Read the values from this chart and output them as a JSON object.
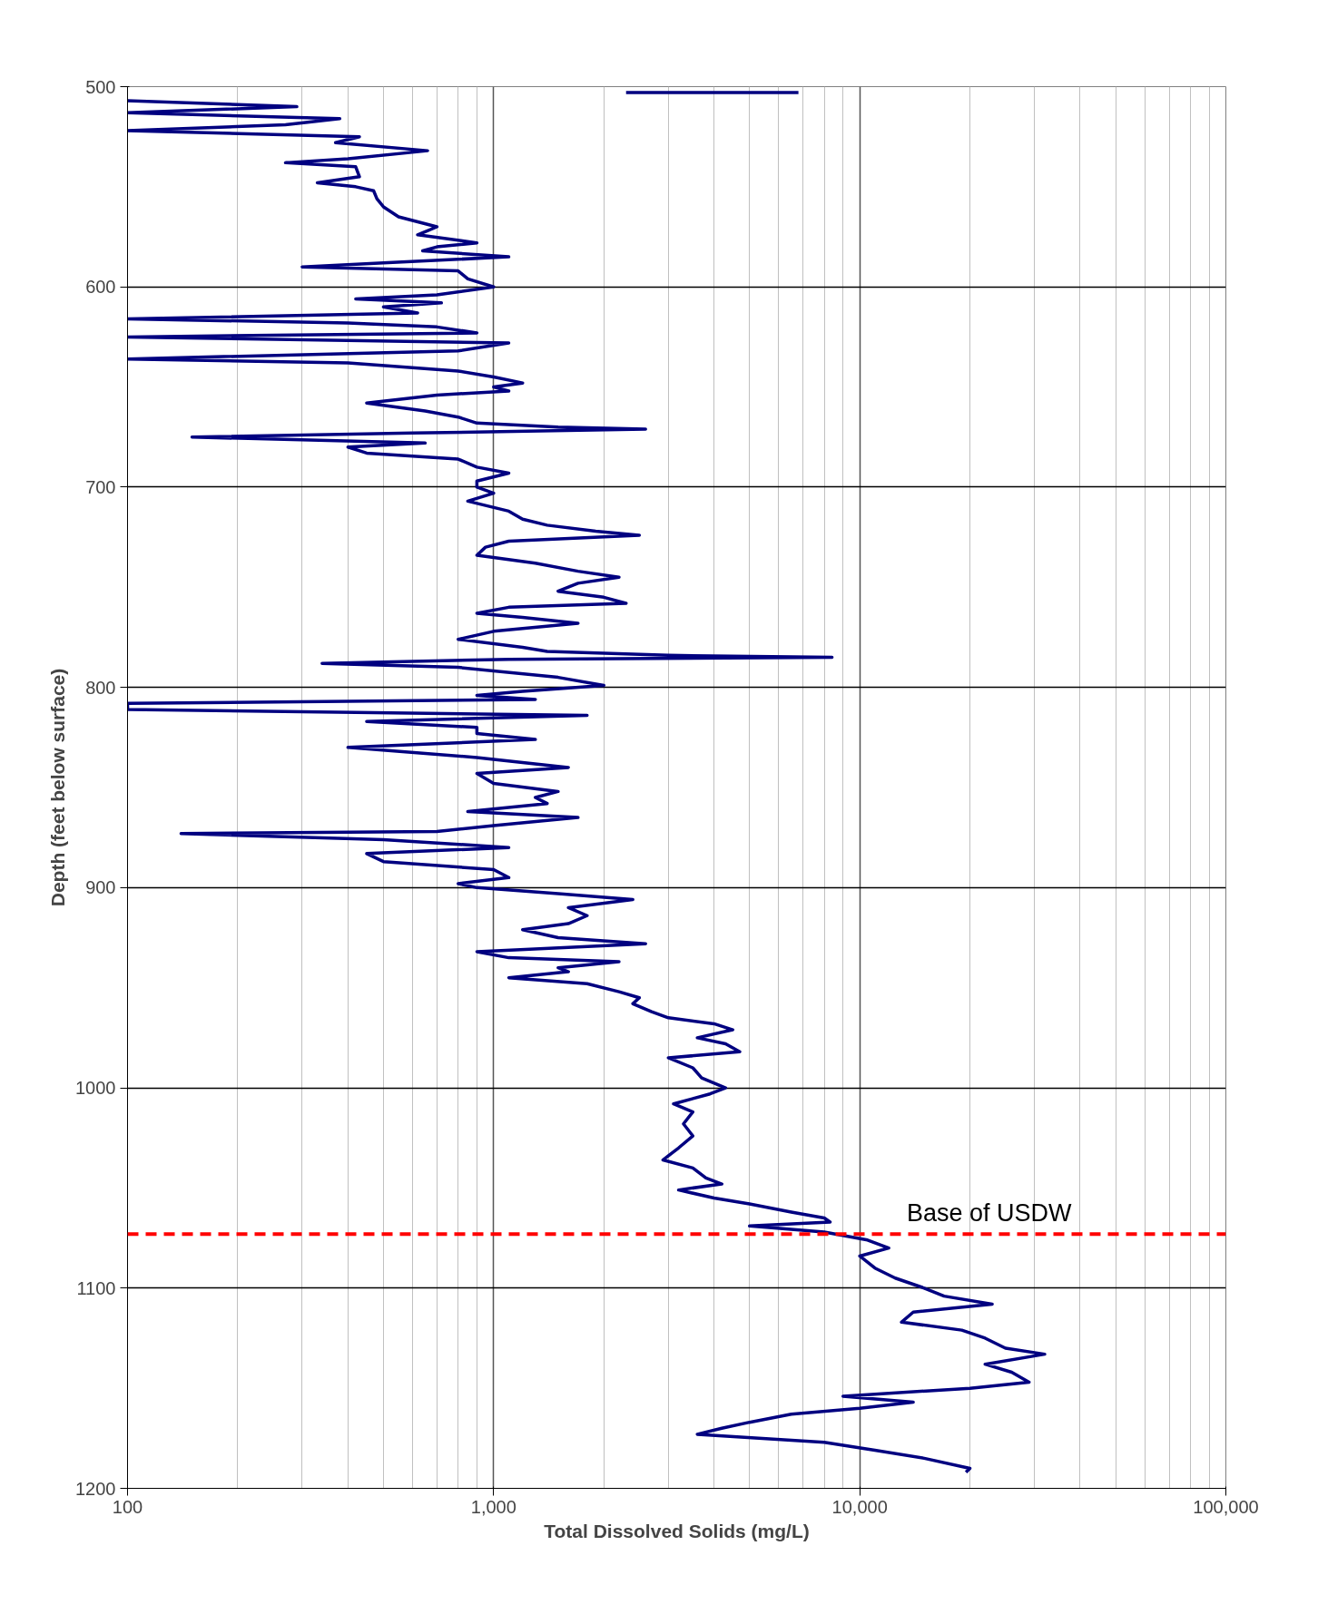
{
  "chart_data": {
    "type": "line",
    "xlabel": "Total Dissolved Solids (mg/L)",
    "ylabel": "Depth (feet below surface)",
    "log": "x",
    "grid": true,
    "marker": "none",
    "line_style": "solid",
    "xlim": [
      100,
      100000
    ],
    "ylim": [
      1200,
      500
    ],
    "xticks": [
      100,
      {
        "value": 1000,
        "label": "1,000"
      },
      {
        "value": 10000,
        "label": "10,000"
      },
      {
        "value": 100000,
        "label": "100,000"
      }
    ],
    "yticks": [
      500,
      600,
      700,
      800,
      900,
      1000,
      1100,
      1200
    ],
    "series": [
      {
        "color": "#000080",
        "x": [
          6800,
          2300,
          null,
          100,
          290,
          100,
          380,
          270,
          100,
          430,
          370,
          660,
          400,
          270,
          420,
          430,
          330,
          420,
          470,
          480,
          500,
          550,
          700,
          620,
          900,
          700,
          640,
          1100,
          500,
          300,
          800,
          850,
          1000,
          700,
          420,
          720,
          500,
          620,
          100,
          400,
          700,
          900,
          100,
          1100,
          800,
          100,
          400,
          800,
          1000,
          1200,
          1000,
          1100,
          700,
          450,
          650,
          800,
          900,
          1500,
          2600,
          600,
          150,
          650,
          400,
          450,
          800,
          900,
          1100,
          900,
          900,
          1000,
          850,
          1100,
          1200,
          1400,
          1900,
          2500,
          1100,
          950,
          900,
          1300,
          1700,
          2200,
          1700,
          1500,
          2000,
          2300,
          1100,
          900,
          1200,
          1700,
          1000,
          800,
          1200,
          1400,
          3000,
          8400,
          1100,
          340,
          800,
          1500,
          2000,
          1200,
          900,
          1300,
          100,
          100,
          1800,
          450,
          900,
          900,
          1300,
          400,
          900,
          1600,
          900,
          1000,
          1500,
          1300,
          1400,
          850,
          1700,
          1000,
          700,
          140,
          500,
          1100,
          450,
          500,
          1000,
          1100,
          800,
          900,
          1500,
          2400,
          1600,
          1800,
          1600,
          1200,
          1500,
          2600,
          900,
          1100,
          2200,
          1500,
          1600,
          1100,
          1800,
          2200,
          2500,
          2400,
          2700,
          3000,
          4000,
          4500,
          3600,
          4300,
          4700,
          3000,
          3500,
          3700,
          4300,
          3900,
          3100,
          3500,
          3300,
          3500,
          3200,
          2900,
          3500,
          3800,
          4200,
          3200,
          4000,
          5000,
          6500,
          8000,
          8300,
          5000,
          8000,
          10500,
          12000,
          10000,
          11000,
          12500,
          15000,
          17000,
          23000,
          14000,
          13000,
          19000,
          22000,
          25000,
          32000,
          22000,
          26000,
          29000,
          20000,
          9000,
          14000,
          10000,
          6500,
          5000,
          4200,
          3600,
          8000,
          11000,
          15000,
          20000,
          19500
        ],
        "values": [
          503,
          503,
          null,
          507,
          510,
          513,
          516,
          519,
          522,
          525,
          528,
          532,
          536,
          538,
          540,
          545,
          548,
          550,
          552,
          556,
          560,
          565,
          570,
          574,
          578,
          580,
          582,
          585,
          588,
          590,
          592,
          596,
          600,
          604,
          606,
          608,
          610,
          613,
          616,
          618,
          620,
          623,
          625,
          628,
          632,
          636,
          638,
          642,
          645,
          648,
          650,
          652,
          654,
          658,
          662,
          665,
          668,
          670,
          671,
          673,
          675,
          678,
          680,
          683,
          686,
          690,
          693,
          697,
          700,
          703,
          707,
          712,
          716,
          719,
          722,
          724,
          727,
          730,
          734,
          738,
          742,
          745,
          748,
          752,
          755,
          758,
          760,
          763,
          765,
          768,
          772,
          776,
          780,
          782,
          784,
          785,
          786,
          788,
          790,
          795,
          799,
          802,
          804,
          806,
          808,
          811,
          814,
          817,
          820,
          823,
          826,
          830,
          835,
          840,
          843,
          848,
          852,
          855,
          858,
          862,
          865,
          869,
          872,
          873,
          876,
          880,
          883,
          887,
          891,
          895,
          898,
          900,
          903,
          906,
          910,
          914,
          918,
          921,
          925,
          928,
          932,
          935,
          937,
          940,
          942,
          945,
          948,
          952,
          955,
          958,
          962,
          965,
          968,
          971,
          975,
          978,
          982,
          985,
          990,
          995,
          1000,
          1003,
          1008,
          1012,
          1018,
          1024,
          1030,
          1036,
          1040,
          1045,
          1048,
          1051,
          1055,
          1058,
          1062,
          1065,
          1067,
          1069,
          1072,
          1076,
          1080,
          1084,
          1090,
          1095,
          1100,
          1104,
          1108,
          1112,
          1117,
          1121,
          1125,
          1130,
          1133,
          1138,
          1142,
          1147,
          1150,
          1154,
          1157,
          1160,
          1163,
          1167,
          1170,
          1173,
          1177,
          1181,
          1185,
          1190,
          1192
        ]
      }
    ],
    "ref_lines": [
      {
        "axis": "y",
        "value": 1073,
        "label": "Base of USDW",
        "color": "#ff0000",
        "line_style": "dashed"
      }
    ]
  }
}
